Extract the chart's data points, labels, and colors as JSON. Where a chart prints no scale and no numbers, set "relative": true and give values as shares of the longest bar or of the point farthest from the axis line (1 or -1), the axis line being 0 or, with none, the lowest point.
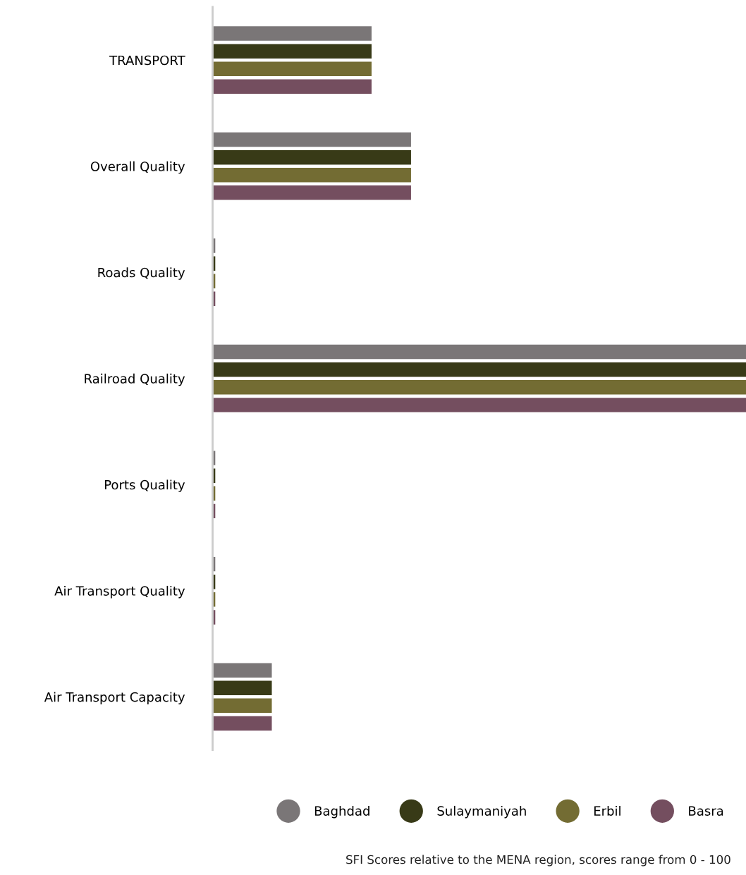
{
  "chart_data": {
    "type": "bar",
    "orientation": "horizontal",
    "relative": true,
    "categories": [
      "TRANSPORT",
      "Overall Quality",
      "Roads Quality",
      "Railroad Quality",
      "Ports Quality",
      "Air Transport Quality",
      "Air Transport Capacity"
    ],
    "series": [
      {
        "name": "Baghdad",
        "color": "#7a7677",
        "values": [
          0.298,
          0.372,
          0.005,
          1,
          0.005,
          0.005,
          0.111
        ]
      },
      {
        "name": "Sulaymaniyah",
        "color": "#383a17",
        "values": [
          0.298,
          0.372,
          0.005,
          1,
          0.005,
          0.005,
          0.111
        ]
      },
      {
        "name": "Erbil",
        "color": "#736c33",
        "values": [
          0.298,
          0.372,
          0.005,
          1,
          0.005,
          0.005,
          0.111
        ]
      },
      {
        "name": "Basra",
        "color": "#744e5f",
        "values": [
          0.298,
          0.372,
          0.005,
          1,
          0.005,
          0.005,
          0.111
        ]
      }
    ],
    "legend": "bottom",
    "grid": false,
    "annotations": [
      "SFI Scores relative to the MENA region, scores range from 0 - 100"
    ]
  }
}
